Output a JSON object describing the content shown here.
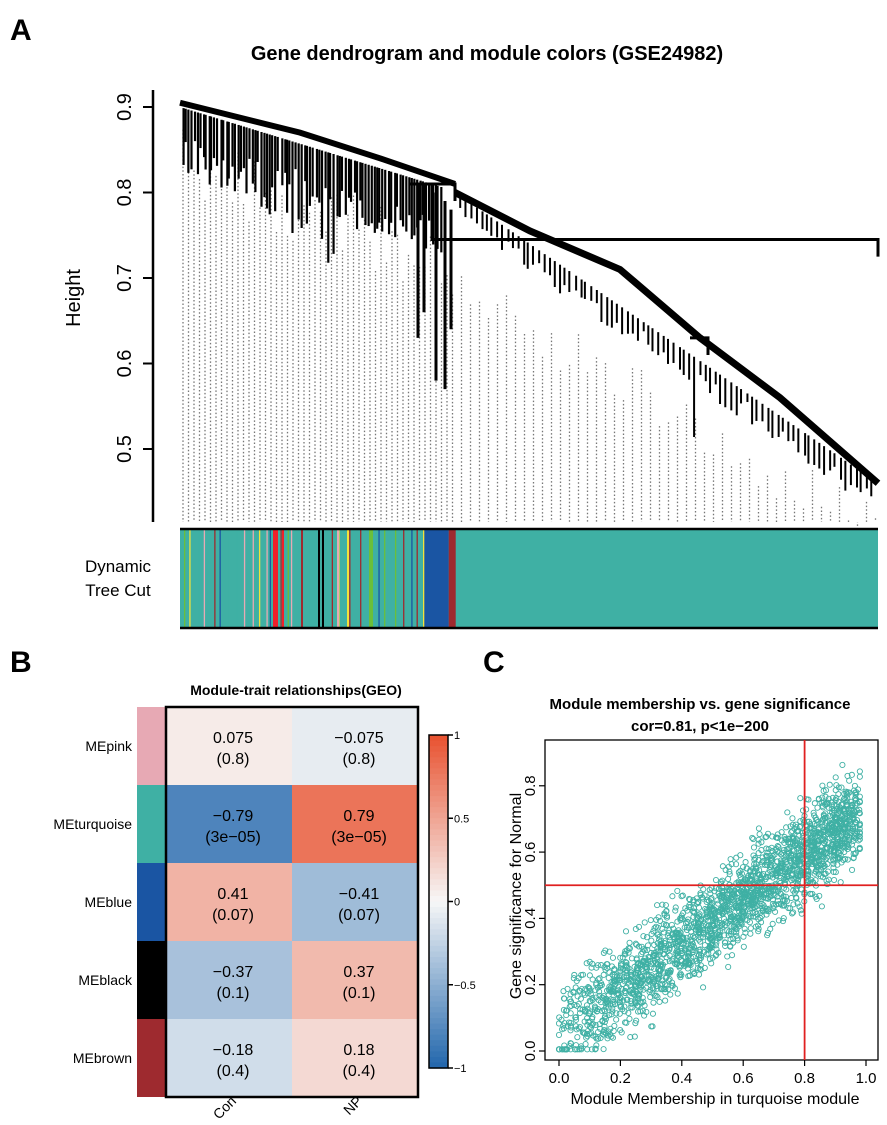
{
  "panels": {
    "A": "A",
    "B": "B",
    "C": "C"
  },
  "colors": {
    "turquoise": "#3fb0a4",
    "blue": "#1a55a3",
    "brown": "#9e2a2f",
    "black": "#000000",
    "pink": "#e7a9b4",
    "red": "#f0202a",
    "yellow": "#f4e23a",
    "green": "#6bbf3a",
    "heat_low": "#2166ac",
    "heat_mid": "#f7f7f7",
    "heat_high": "#e8512f",
    "scatter_point": "#3fb0a4",
    "ref_line": "#e02020"
  },
  "chart_data": [
    {
      "type": "dendrogram",
      "title": "Gene dendrogram and module colors (GSE24982)",
      "ylabel": "Height",
      "ylim": [
        0.42,
        0.92
      ],
      "yticks": [
        "0.5",
        "0.6",
        "0.7",
        "0.8",
        "0.9"
      ],
      "color_bar_label": [
        "Dynamic",
        "Tree Cut"
      ],
      "merge_heights": {
        "root": 0.745,
        "left_cluster_top": 0.905,
        "left_cluster_merge": 0.81,
        "right_cluster_start": 0.76,
        "right_cluster_end": 0.46,
        "right_sub_merge": 0.63
      },
      "module_color_bar": [
        {
          "module": "mixed",
          "from": 0.0,
          "to": 0.35
        },
        {
          "module": "blue",
          "from": 0.35,
          "to": 0.385
        },
        {
          "module": "brown",
          "from": 0.385,
          "to": 0.395
        },
        {
          "module": "turquoise",
          "from": 0.395,
          "to": 1.0
        }
      ]
    },
    {
      "type": "heatmap",
      "title": "Module-trait relationships(GEO)",
      "rows": [
        "MEpink",
        "MEturquoise",
        "MEblue",
        "MEblack",
        "MEbrown"
      ],
      "row_colors": [
        "pink",
        "turquoise",
        "blue",
        "black",
        "brown"
      ],
      "columns": [
        "Con",
        "NP"
      ],
      "values": [
        [
          0.075,
          -0.075
        ],
        [
          -0.79,
          0.79
        ],
        [
          0.41,
          -0.41
        ],
        [
          -0.37,
          0.37
        ],
        [
          -0.18,
          0.18
        ]
      ],
      "cell_text": [
        [
          [
            "0.075",
            "(0.8)"
          ],
          [
            "−0.075",
            "(0.8)"
          ]
        ],
        [
          [
            "−0.79",
            "(3e−05)"
          ],
          [
            "0.79",
            "(3e−05)"
          ]
        ],
        [
          [
            "0.41",
            "(0.07)"
          ],
          [
            "−0.41",
            "(0.07)"
          ]
        ],
        [
          [
            "−0.37",
            "(0.1)"
          ],
          [
            "0.37",
            "(0.1)"
          ]
        ],
        [
          [
            "−0.18",
            "(0.4)"
          ],
          [
            "0.18",
            "(0.4)"
          ]
        ]
      ],
      "colorbar_range": [
        -1,
        1
      ],
      "colorbar_ticks": [
        "1",
        "0.5",
        "0",
        "−0.5",
        "−1"
      ]
    },
    {
      "type": "scatter",
      "title": "Module membership vs. gene significance",
      "subtitle": "cor=0.81, p<1e−200",
      "xlabel": "Module Membership in turquoise module",
      "ylabel": "Gene significance for  Normal",
      "xlim": [
        0.0,
        1.0
      ],
      "ylim": [
        0.0,
        0.92
      ],
      "xticks": [
        "0.0",
        "0.2",
        "0.4",
        "0.6",
        "0.8",
        "1.0"
      ],
      "yticks": [
        "0.0",
        "0.2",
        "0.4",
        "0.6",
        "0.8"
      ],
      "correlation": 0.81,
      "n_points": 2200,
      "vline_x": 0.8,
      "hline_y": 0.5
    }
  ]
}
